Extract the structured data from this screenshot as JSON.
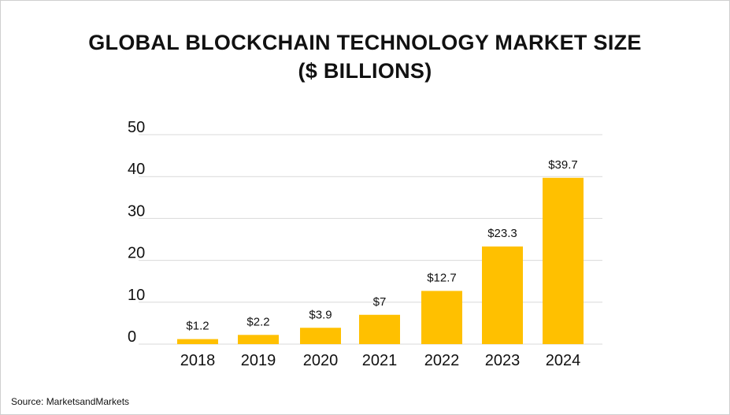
{
  "chart_data": {
    "type": "bar",
    "title": "GLOBAL BLOCKCHAIN TECHNOLOGY MARKET SIZE",
    "subtitle": "($ BILLIONS)",
    "categories": [
      "2018",
      "2019",
      "2020",
      "2021",
      "2022",
      "2023",
      "2024"
    ],
    "values": [
      1.2,
      2.2,
      3.9,
      7,
      12.7,
      23.3,
      39.7
    ],
    "data_labels": [
      "$1.2",
      "$2.2",
      "$3.9",
      "$7",
      "$12.7",
      "$23.3",
      "$39.7"
    ],
    "y_ticks": [
      0,
      10,
      20,
      30,
      40,
      50
    ],
    "ylim": [
      0,
      50
    ],
    "xlabel": "",
    "ylabel": "",
    "grid": true,
    "bar_color": "#FFC000",
    "grid_color": "#D9D9D9"
  },
  "source": "Source: MarketsandMarkets"
}
